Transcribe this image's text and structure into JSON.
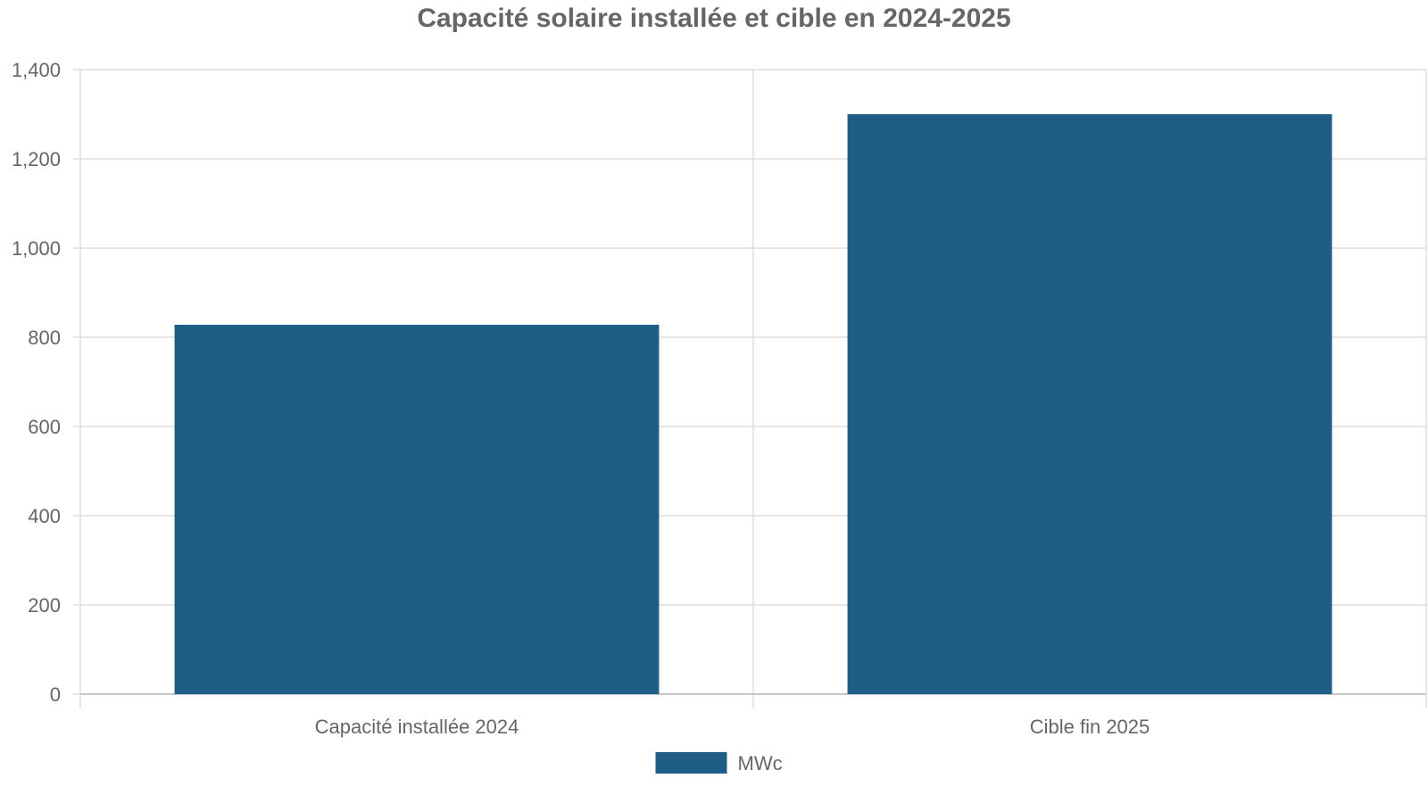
{
  "chart_data": {
    "type": "bar",
    "title": "Capacité solaire installée et cible en 2024-2025",
    "xlabel": "",
    "ylabel": "",
    "categories": [
      "Capacité installée 2024",
      "Cible fin 2025"
    ],
    "series": [
      {
        "name": "MWc",
        "values": [
          828,
          1300
        ],
        "color": "#205d86"
      }
    ],
    "ylim": [
      0,
      1400
    ],
    "yticks": [
      0,
      200,
      400,
      600,
      800,
      1000,
      1200,
      1400
    ],
    "ytick_labels": [
      "0",
      "200",
      "400",
      "600",
      "800",
      "1,000",
      "1,200",
      "1,400"
    ],
    "grid": true,
    "legend_position": "bottom-center",
    "gridline_color": "#dddddd",
    "text_color": "#666666"
  }
}
